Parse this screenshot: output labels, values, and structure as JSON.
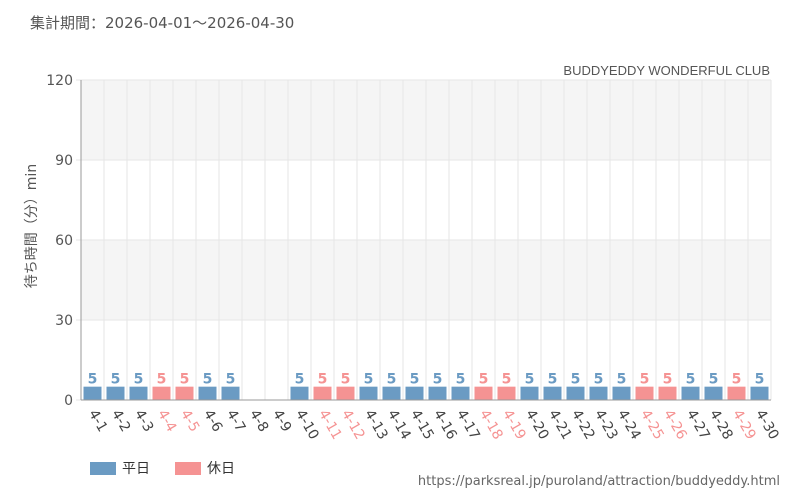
{
  "header": {
    "period_label": "集計期間：2026-04-01～2026-04-30"
  },
  "source_url": "https://parksreal.jp/puroland/attraction/buddyeddy.html",
  "colors": {
    "weekday": "#6b9bc3",
    "holiday": "#f59393",
    "grid": "#e6e6e6",
    "band": "#f5f5f5"
  },
  "chart_data": {
    "type": "bar",
    "title": "BUDDYEDDY WONDERFUL CLUB",
    "ylabel": "待ち時間（分）min",
    "xlabel": "",
    "ylim": [
      0,
      120
    ],
    "yticks": [
      0,
      30,
      60,
      90,
      120
    ],
    "grid": true,
    "legend_position": "bottom-left",
    "legend": [
      {
        "key": "weekday",
        "label": "平日"
      },
      {
        "key": "holiday",
        "label": "休日"
      }
    ],
    "categories": [
      "4-1",
      "4-2",
      "4-3",
      "4-4",
      "4-5",
      "4-6",
      "4-7",
      "4-8",
      "4-9",
      "4-10",
      "4-11",
      "4-12",
      "4-13",
      "4-14",
      "4-15",
      "4-16",
      "4-17",
      "4-18",
      "4-19",
      "4-20",
      "4-21",
      "4-22",
      "4-23",
      "4-24",
      "4-25",
      "4-26",
      "4-27",
      "4-28",
      "4-29",
      "4-30"
    ],
    "values": [
      5,
      5,
      5,
      5,
      5,
      5,
      5,
      null,
      null,
      5,
      5,
      5,
      5,
      5,
      5,
      5,
      5,
      5,
      5,
      5,
      5,
      5,
      5,
      5,
      5,
      5,
      5,
      5,
      5,
      5
    ],
    "day_type": [
      "weekday",
      "weekday",
      "weekday",
      "holiday",
      "holiday",
      "weekday",
      "weekday",
      "weekday",
      "weekday",
      "weekday",
      "holiday",
      "holiday",
      "weekday",
      "weekday",
      "weekday",
      "weekday",
      "weekday",
      "holiday",
      "holiday",
      "weekday",
      "weekday",
      "weekday",
      "weekday",
      "weekday",
      "holiday",
      "holiday",
      "weekday",
      "weekday",
      "holiday",
      "weekday"
    ]
  }
}
